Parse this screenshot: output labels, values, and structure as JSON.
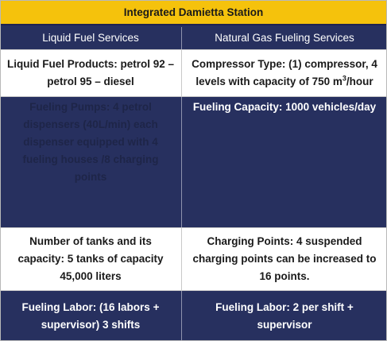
{
  "table": {
    "title": "Integrated Damietta Station",
    "headers": [
      "Liquid Fuel Services",
      "Natural Gas Fueling Services"
    ],
    "rows": [
      {
        "left": "Liquid Fuel Products: petrol 92 – petrol 95 – diesel",
        "right_prefix": "Compressor Type: (1) compressor, 4 levels with capacity of 750 m",
        "right_sup": "3",
        "right_suffix": "/hour"
      },
      {
        "left": "Fueling Pumps: 4 petrol dispensers (40L/min) each dispenser equipped with 4 fueling houses /8 charging points",
        "right": "Fueling Capacity: 1000 vehicles/day"
      },
      {
        "left": "Number of tanks and its capacity: 5 tanks of capacity 45,000 liters",
        "right": "Charging Points: 4 suspended charging points can be increased to 16 points."
      },
      {
        "left": "Fueling Labor: (16 labors + supervisor) 3 shifts",
        "right": "Fueling Labor: 2 per shift + supervisor"
      }
    ]
  },
  "colors": {
    "title_background": "#f5c20c",
    "navy": "#27305f",
    "white_row": "#ffffff"
  }
}
